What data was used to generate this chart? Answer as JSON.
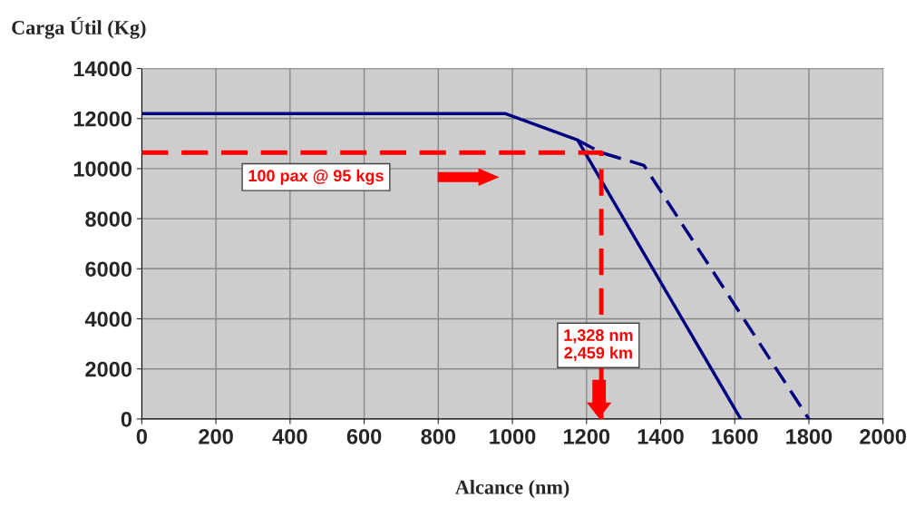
{
  "chart_data": {
    "type": "line",
    "ylabel": "Carga Útil (Kg)",
    "xlabel": "Alcance (nm)",
    "xlim": [
      0,
      2000
    ],
    "xticks": [
      0,
      200,
      400,
      600,
      800,
      1000,
      1200,
      1400,
      1600,
      1800,
      2000
    ],
    "ylim": [
      0,
      14000
    ],
    "yticks": [
      0,
      2000,
      4000,
      6000,
      8000,
      10000,
      12000,
      14000
    ],
    "grid": true,
    "legend": false,
    "series": [
      {
        "color": "#000080",
        "line_style": "solid",
        "x": [
          0,
          980,
          1176,
          1616
        ],
        "values": [
          12200,
          12200,
          11140,
          0
        ]
      },
      {
        "color": "#000080",
        "line_style": "dashed",
        "x": [
          1176,
          1240,
          1355,
          1800
        ],
        "values": [
          11140,
          10640,
          10130,
          0
        ]
      },
      {
        "color": "#ff0000",
        "line_style": "dashed",
        "x": [
          0,
          1240,
          1240
        ],
        "values": [
          10640,
          10640,
          0
        ]
      }
    ],
    "annotations": [
      "100 pax @ 95 kgs",
      "1,328 nm\n2,459 km"
    ]
  }
}
